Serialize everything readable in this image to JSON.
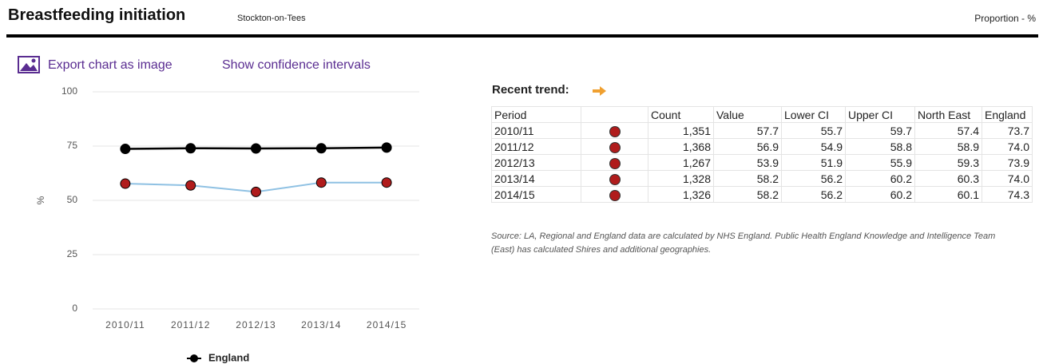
{
  "header": {
    "title": "Breastfeeding initiation",
    "area": "Stockton-on-Tees",
    "unit": "Proportion - %"
  },
  "links": {
    "export": "Export chart as image",
    "confidence": "Show confidence intervals"
  },
  "chart_data": {
    "type": "line",
    "y_label": "%",
    "categories": [
      "2010/11",
      "2011/12",
      "2012/13",
      "2013/14",
      "2014/15"
    ],
    "series": [
      {
        "name": "England",
        "color": "#000000",
        "marker_color": "#000000",
        "values": [
          73.7,
          74.0,
          73.9,
          74.0,
          74.3
        ]
      },
      {
        "color": "#8fc1e3",
        "marker_color": "#b01c1c",
        "values": [
          57.7,
          56.9,
          53.9,
          58.2,
          58.2
        ]
      }
    ],
    "ylim": [
      0,
      100
    ],
    "yticks": [
      0,
      25,
      50,
      75,
      100
    ],
    "grid": true
  },
  "trend": {
    "label": "Recent trend:"
  },
  "table": {
    "headers": [
      "Period",
      "Count",
      "Value",
      "Lower CI",
      "Upper CI",
      "North East",
      "England"
    ],
    "rows": [
      [
        "2010/11",
        "1,351",
        "57.7",
        "55.7",
        "59.7",
        "57.4",
        "73.7"
      ],
      [
        "2011/12",
        "1,368",
        "56.9",
        "54.9",
        "58.8",
        "58.9",
        "74.0"
      ],
      [
        "2012/13",
        "1,267",
        "53.9",
        "51.9",
        "55.9",
        "59.3",
        "73.9"
      ],
      [
        "2013/14",
        "1,328",
        "58.2",
        "56.2",
        "60.2",
        "60.3",
        "74.0"
      ],
      [
        "2014/15",
        "1,326",
        "58.2",
        "56.2",
        "60.2",
        "60.1",
        "74.3"
      ]
    ],
    "source": "Source: LA, Regional and England data are calculated by NHS England. Public Health England Knowledge and Intelligence Team (East) has calculated Shires and additional geographies."
  }
}
